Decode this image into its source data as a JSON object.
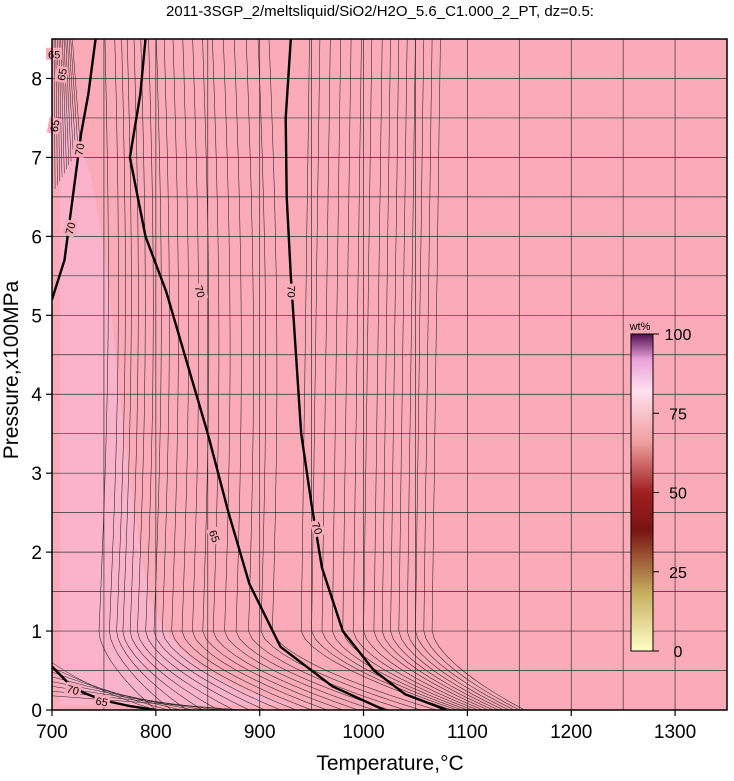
{
  "chart_data": {
    "type": "heatmap",
    "title": "2011-3SGP_2/meltsliquid/SiO2/H2O_5.6_C1.000_2_PT, dz=0.5:",
    "xlabel": "Temperature,°C",
    "ylabel": "Pressure,x100MPa",
    "xlim": [
      700,
      1350
    ],
    "ylim": [
      0,
      8.5
    ],
    "xticks": [
      "700",
      "800",
      "900",
      "1000",
      "1100",
      "1200",
      "1300"
    ],
    "yticks": [
      "0",
      "1",
      "2",
      "3",
      "4",
      "5",
      "6",
      "7",
      "8"
    ],
    "grid": true,
    "background_color": "#fbaab8",
    "colorbar": {
      "title": "wt%",
      "ticks": [
        "0",
        "25",
        "50",
        "75",
        "100"
      ],
      "range": [
        0,
        100
      ],
      "position": "right-inside"
    },
    "contour_labels": [
      "65",
      "65",
      "65",
      "70",
      "70",
      "70",
      "70",
      "65",
      "70",
      "70",
      "65"
    ],
    "major_contours": [
      {
        "level": 70,
        "points": [
          [
            700,
            5.2
          ],
          [
            712,
            5.7
          ],
          [
            720,
            6.5
          ],
          [
            728,
            7.3
          ],
          [
            735,
            7.8
          ],
          [
            742,
            8.5
          ]
        ]
      },
      {
        "level": 70,
        "points": [
          [
            790,
            8.5
          ],
          [
            785,
            7.8
          ],
          [
            775,
            7.0
          ],
          [
            790,
            6.0
          ],
          [
            810,
            5.3
          ],
          [
            830,
            4.4
          ],
          [
            850,
            3.5
          ],
          [
            870,
            2.5
          ],
          [
            890,
            1.6
          ],
          [
            920,
            0.8
          ],
          [
            970,
            0.3
          ],
          [
            1020,
            0.0
          ]
        ]
      },
      {
        "level": 65,
        "points": [
          [
            930,
            8.5
          ],
          [
            925,
            7.5
          ],
          [
            926,
            6.5
          ],
          [
            930,
            5.5
          ],
          [
            935,
            4.5
          ],
          [
            940,
            3.5
          ],
          [
            950,
            2.6
          ],
          [
            960,
            1.8
          ],
          [
            980,
            1.0
          ],
          [
            1010,
            0.5
          ],
          [
            1040,
            0.2
          ],
          [
            1080,
            0.0
          ]
        ]
      },
      {
        "level": 70,
        "points": [
          [
            700,
            0.55
          ],
          [
            715,
            0.35
          ],
          [
            730,
            0.22
          ],
          [
            750,
            0.12
          ],
          [
            775,
            0.05
          ],
          [
            800,
            0.0
          ]
        ]
      }
    ],
    "minor_contours": {
      "interval": 0.5,
      "front_1000MPa_t": [
        745,
        755,
        762,
        768,
        775,
        782,
        790,
        798,
        806,
        815,
        825,
        835,
        845,
        855,
        866,
        877,
        889,
        901,
        912,
        940,
        950,
        960,
        970,
        980,
        990,
        1000,
        1010,
        1018,
        1026,
        1034,
        1042,
        1050,
        1058,
        1066
      ],
      "front_0MPa_t": [
        800,
        815,
        830,
        845,
        860,
        875,
        890,
        905,
        920,
        935,
        950,
        965,
        980,
        995,
        1010,
        1025,
        1040,
        1055,
        1070,
        1085,
        1090,
        1095,
        1100,
        1105,
        1110,
        1115,
        1120,
        1125,
        1130,
        1135,
        1140,
        1145,
        1150,
        1155
      ]
    }
  }
}
